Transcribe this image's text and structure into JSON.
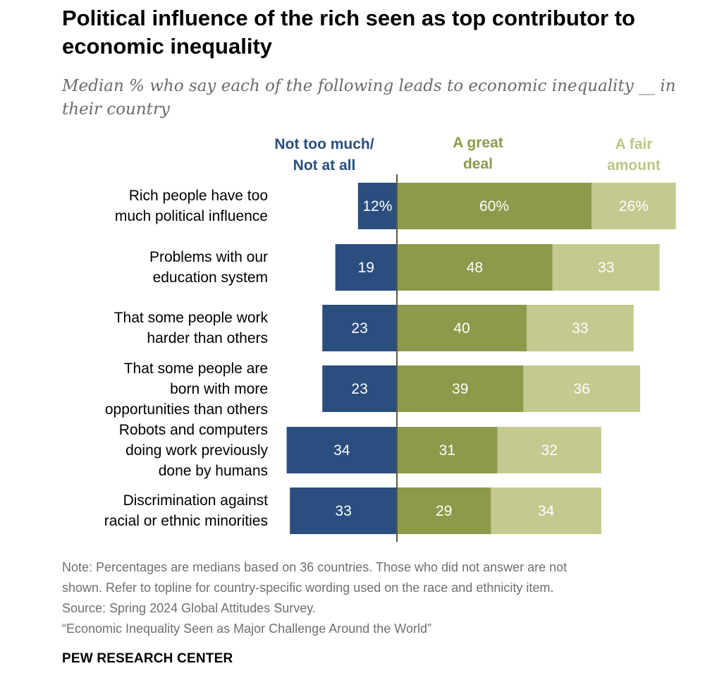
{
  "header": {
    "title": "Political influence of the rich seen as top contributor to economic inequality",
    "subtitle": "Median % who say each of the following leads to economic inequality __ in their country"
  },
  "colors": {
    "not_much": "#2a4e7e",
    "great_deal": "#8d9a4b",
    "fair_amount": "#c4c98f",
    "axis": "#5a5a3c",
    "legend_not": "#2a4e7e",
    "legend_great": "#8d9a4b",
    "legend_fair": "#bec486"
  },
  "chart_data": {
    "type": "bar",
    "orientation": "horizontal-diverging",
    "legend": [
      "Not too much/\nNot at all",
      "A great\ndeal",
      "A fair\namount"
    ],
    "categories": [
      "Rich people have too\nmuch political influence",
      "Problems with our\neducation system",
      "That some people work\nharder than others",
      "That some people are\nborn with more\nopportunities than others",
      "Robots and computers\ndoing work previously\ndone by humans",
      "Discrimination against\nracial or ethnic minorities"
    ],
    "series": [
      {
        "name": "Not too much/Not at all",
        "values": [
          12,
          19,
          23,
          23,
          34,
          33
        ],
        "labels": [
          "12%",
          "19",
          "23",
          "23",
          "34",
          "33"
        ]
      },
      {
        "name": "A great deal",
        "values": [
          60,
          48,
          40,
          39,
          31,
          29
        ],
        "labels": [
          "60%",
          "48",
          "40",
          "39",
          "31",
          "29"
        ]
      },
      {
        "name": "A fair amount",
        "values": [
          26,
          33,
          33,
          36,
          32,
          34
        ],
        "labels": [
          "26%",
          "33",
          "33",
          "36",
          "32",
          "34"
        ]
      }
    ]
  },
  "footer": {
    "note_lines": [
      "Note: Percentages are medians based on 36 countries. Those who did not answer are not",
      "shown. Refer to topline for country-specific wording used on the race and ethnicity item.",
      "Source: Spring 2024 Global Attitudes Survey.",
      "“Economic Inequality Seen as Major Challenge Around the World”"
    ],
    "brand": "PEW RESEARCH CENTER"
  }
}
